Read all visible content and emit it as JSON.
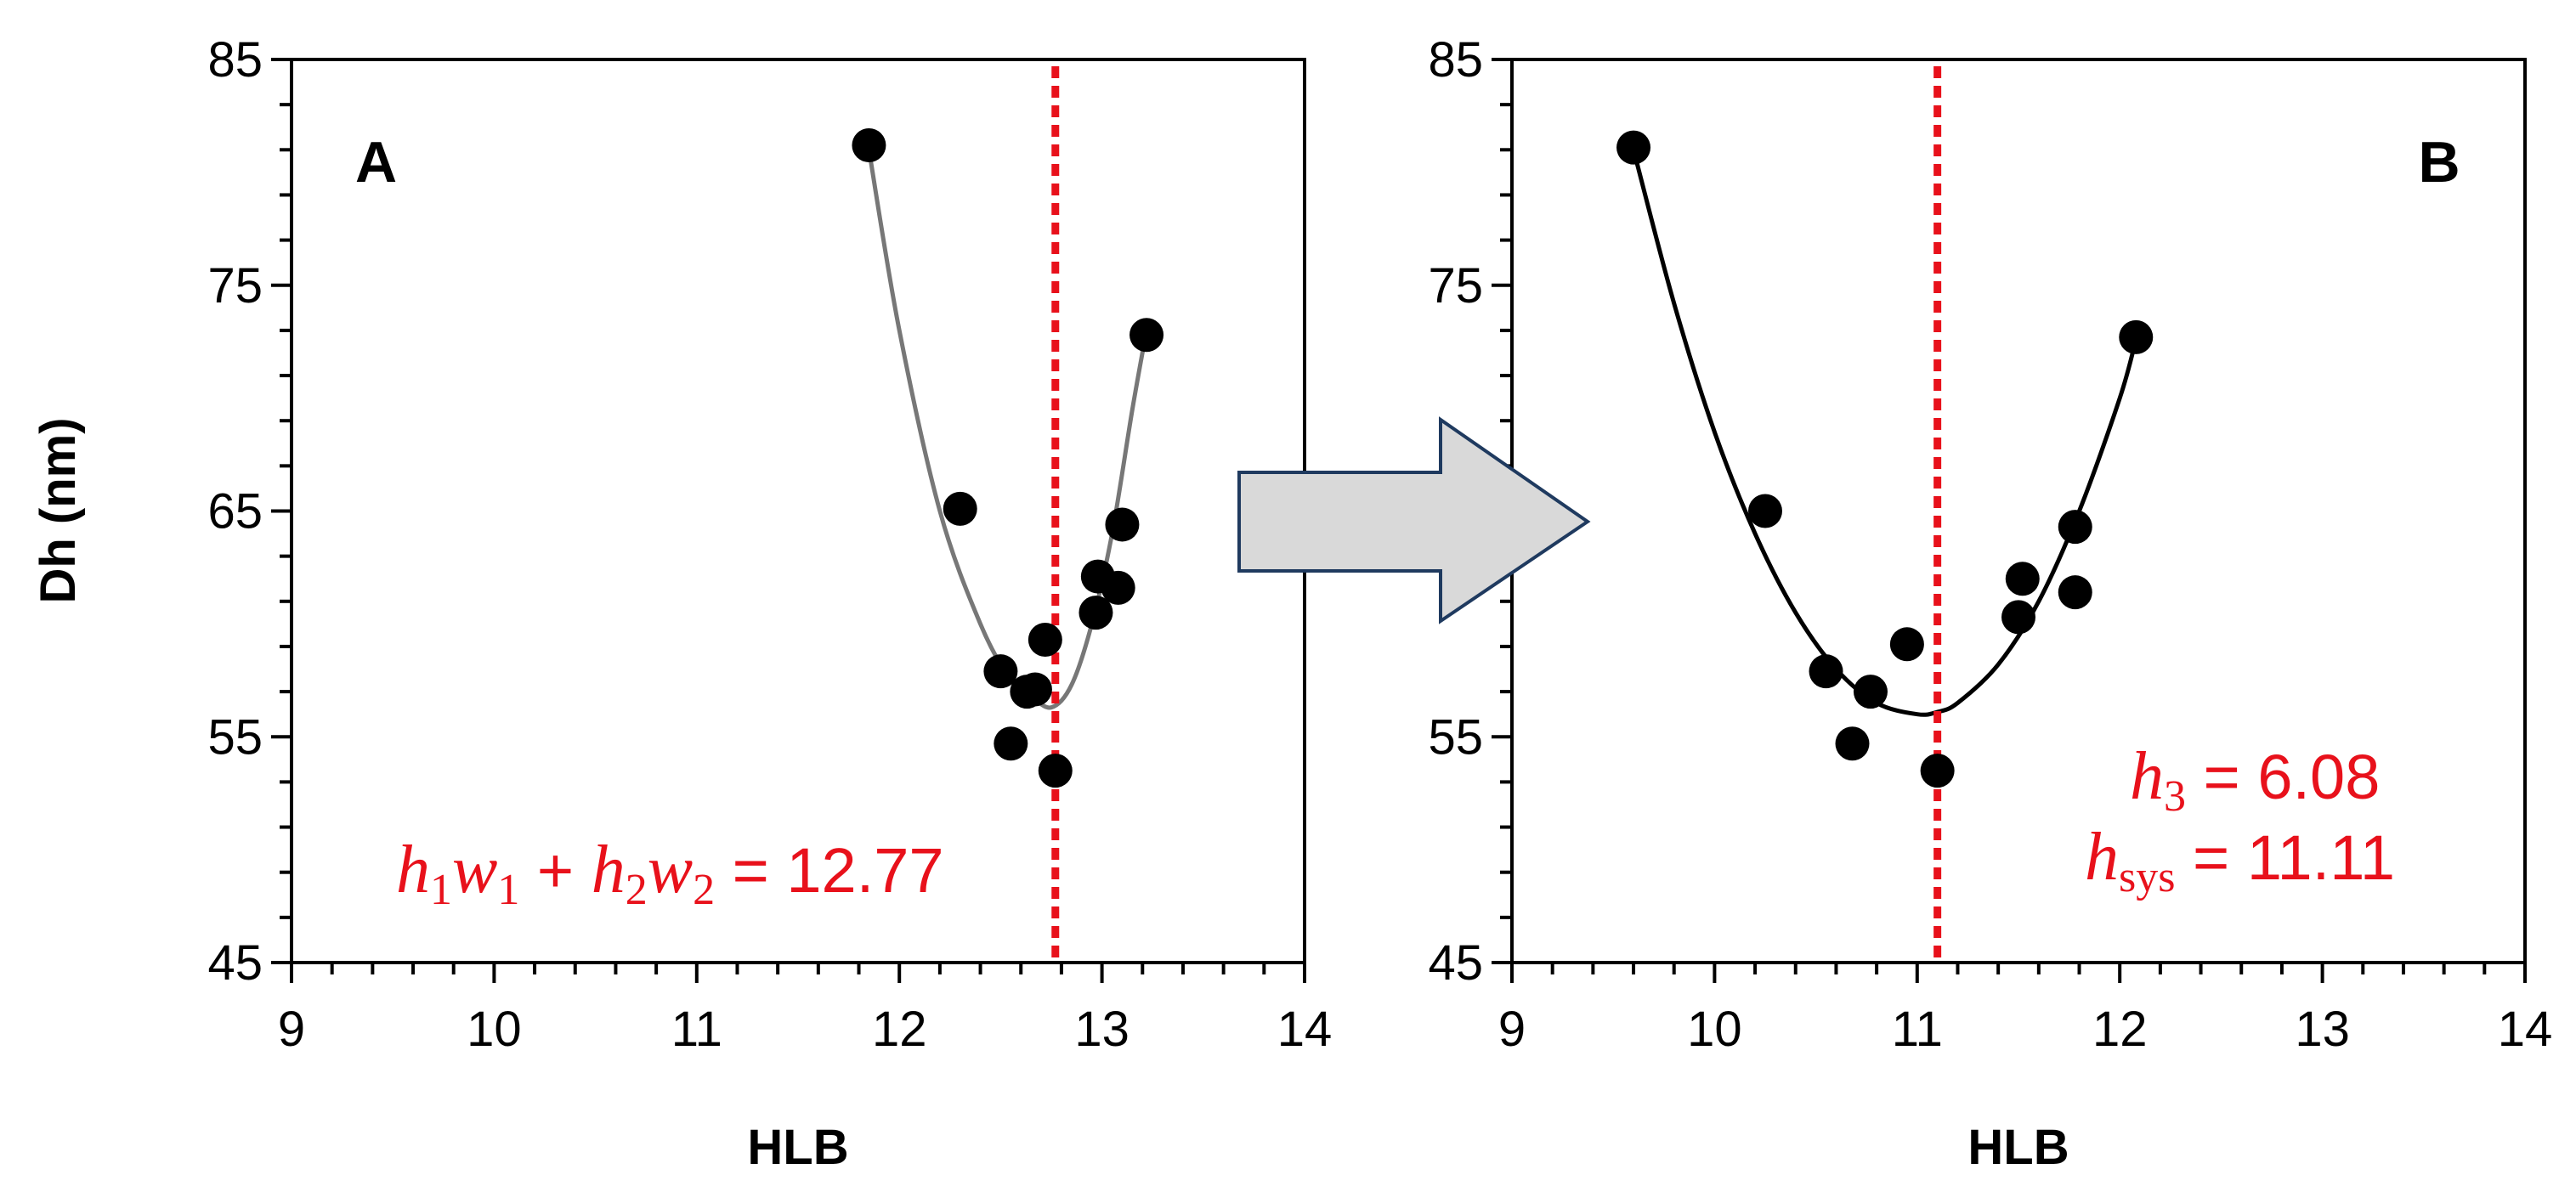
{
  "chart_data": [
    {
      "type": "scatter",
      "panel_label": "A",
      "xlabel": "HLB",
      "ylabel": "Dh (nm)",
      "xlim": [
        9,
        14
      ],
      "ylim": [
        45,
        85
      ],
      "x_ticks": [
        "9",
        "10",
        "11",
        "12",
        "13",
        "14"
      ],
      "y_ticks": [
        "45",
        "55",
        "65",
        "75",
        "85"
      ],
      "grid": false,
      "points": {
        "x": [
          11.85,
          12.3,
          12.5,
          12.55,
          12.63,
          12.67,
          12.72,
          12.77,
          12.97,
          12.98,
          13.08,
          13.1,
          13.22
        ],
        "y": [
          81.2,
          65.1,
          57.9,
          54.7,
          57.0,
          57.1,
          59.3,
          53.5,
          60.5,
          62.1,
          61.6,
          64.4,
          72.8
        ]
      },
      "fit_curve": {
        "color": "#777777",
        "x": [
          11.85,
          12.0,
          12.2,
          12.4,
          12.55,
          12.65,
          12.75,
          12.85,
          12.95,
          13.05,
          13.15,
          13.22
        ],
        "y": [
          81.0,
          73.0,
          65.0,
          60.0,
          57.5,
          56.8,
          56.3,
          57.3,
          60.0,
          64.0,
          69.5,
          73.0
        ]
      },
      "vline": {
        "x": 12.77,
        "color": "#e8111b",
        "style": "dotted"
      },
      "annotation": {
        "value": "12.77"
      }
    },
    {
      "type": "scatter",
      "panel_label": "B",
      "xlabel": "HLB",
      "ylabel": "",
      "xlim": [
        9,
        14
      ],
      "ylim": [
        45,
        85
      ],
      "x_ticks": [
        "9",
        "10",
        "11",
        "12",
        "13",
        "14"
      ],
      "y_ticks": [
        "45",
        "55",
        "65",
        "75",
        "85"
      ],
      "grid": false,
      "points": {
        "x": [
          9.6,
          10.25,
          10.55,
          10.68,
          10.77,
          10.95,
          11.1,
          11.5,
          11.52,
          11.78,
          11.78,
          12.08
        ],
        "y": [
          81.1,
          65.0,
          57.9,
          54.7,
          57.0,
          59.1,
          53.5,
          60.3,
          62.0,
          61.4,
          64.3,
          72.7
        ]
      },
      "fit_curve": {
        "color": "#000000",
        "x": [
          9.6,
          9.8,
          10.0,
          10.2,
          10.4,
          10.6,
          10.8,
          11.0,
          11.1,
          11.2,
          11.4,
          11.6,
          11.8,
          12.0,
          12.08
        ],
        "y": [
          81.0,
          74.2,
          68.5,
          64.0,
          60.5,
          58.0,
          56.5,
          56.0,
          56.1,
          56.5,
          58.2,
          61.0,
          65.0,
          70.0,
          72.6
        ]
      },
      "vline": {
        "x": 11.1,
        "color": "#e8111b",
        "style": "dotted"
      },
      "annotations": {
        "h3": "6.08",
        "hsys": "11.11"
      }
    }
  ],
  "arrow": {
    "fill": "#d9d9d9",
    "stroke": "#1f3a5f"
  }
}
